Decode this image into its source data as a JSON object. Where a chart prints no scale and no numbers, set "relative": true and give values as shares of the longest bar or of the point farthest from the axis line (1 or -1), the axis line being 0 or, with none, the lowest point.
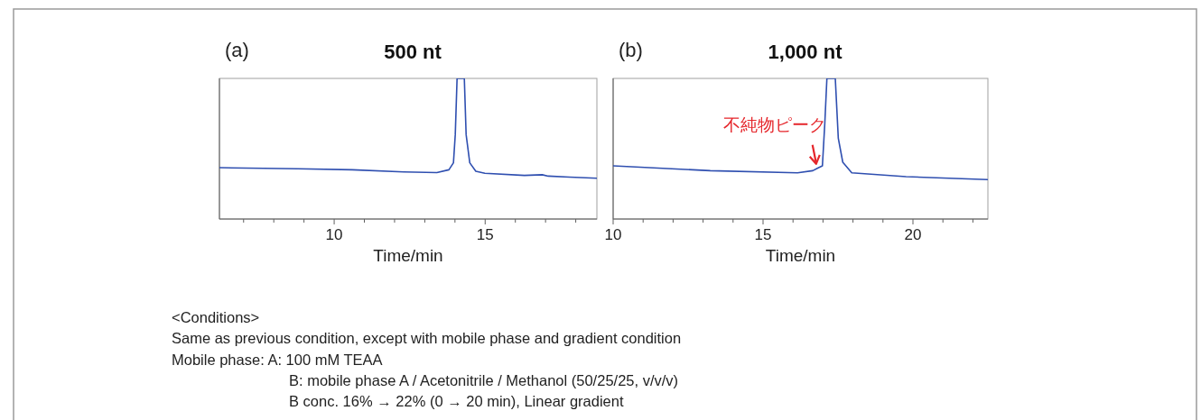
{
  "chart_data": [
    {
      "type": "line",
      "subtitle": "(a)",
      "title": "500 nt",
      "xlabel": "Time/min",
      "relative": true,
      "tick_labels": "x",
      "xlim": [
        6.2,
        18.7
      ],
      "xticks": [
        {
          "value": 7,
          "label": null
        },
        {
          "value": 8,
          "label": null
        },
        {
          "value": 9,
          "label": null
        },
        10,
        {
          "value": 11,
          "label": null
        },
        {
          "value": 12,
          "label": null
        },
        {
          "value": 13,
          "label": null
        },
        {
          "value": 14,
          "label": null
        },
        15,
        {
          "value": 16,
          "label": null
        },
        {
          "value": 17,
          "label": null
        },
        {
          "value": 18,
          "label": null
        }
      ],
      "series": [
        {
          "color": "#2f4fb0",
          "x": [
            6.2,
            8.8,
            10.6,
            12.3,
            13.4,
            13.8,
            13.95,
            14.01,
            14.07,
            14.31,
            14.37,
            14.49,
            14.69,
            14.99,
            16.3,
            16.89,
            17.09,
            17.79,
            18.7
          ],
          "values": [
            0.365,
            0.357,
            0.35,
            0.335,
            0.33,
            0.35,
            0.4,
            0.6,
            1,
            1,
            0.6,
            0.4,
            0.34,
            0.325,
            0.31,
            0.315,
            0.305,
            0.298,
            0.29
          ]
        }
      ]
    },
    {
      "type": "line",
      "subtitle": "(b)",
      "title": "1,000 nt",
      "xlabel": "Time/min",
      "relative": true,
      "tick_labels": "x",
      "xlim": [
        10,
        22.5
      ],
      "xticks": [
        10,
        {
          "value": 11,
          "label": null
        },
        {
          "value": 12,
          "label": null
        },
        {
          "value": 13,
          "label": null
        },
        {
          "value": 14,
          "label": null
        },
        15,
        {
          "value": 16,
          "label": null
        },
        {
          "value": 17,
          "label": null
        },
        {
          "value": 18,
          "label": null
        },
        {
          "value": 19,
          "label": null
        },
        20,
        {
          "value": 21,
          "label": null
        },
        {
          "value": 22,
          "label": null
        }
      ],
      "annotations": [
        {
          "text": "不純物ピーク",
          "x": 16.8,
          "y": 0.36
        }
      ],
      "series": [
        {
          "color": "#2f4fb0",
          "x": [
            10,
            13.24,
            16.15,
            16.66,
            16.81,
            16.98,
            17.06,
            17.13,
            17.41,
            17.51,
            17.66,
            17.96,
            19.77,
            22.48
          ],
          "values": [
            0.378,
            0.344,
            0.329,
            0.344,
            0.361,
            0.378,
            0.68,
            1,
            1,
            0.575,
            0.404,
            0.329,
            0.301,
            0.28
          ]
        }
      ]
    },
    {
      "type": "other",
      "annotations": [
        "<Conditions>",
        "Same as previous condition, except with mobile phase and gradient condition",
        "Mobile phase:  A: 100 mM TEAA",
        "B: mobile phase A / Acetonitrile / Methanol  (50/25/25, v/v/v)",
        "B conc. 16% → 22% (0 → 20 min), Linear gradient"
      ]
    }
  ]
}
